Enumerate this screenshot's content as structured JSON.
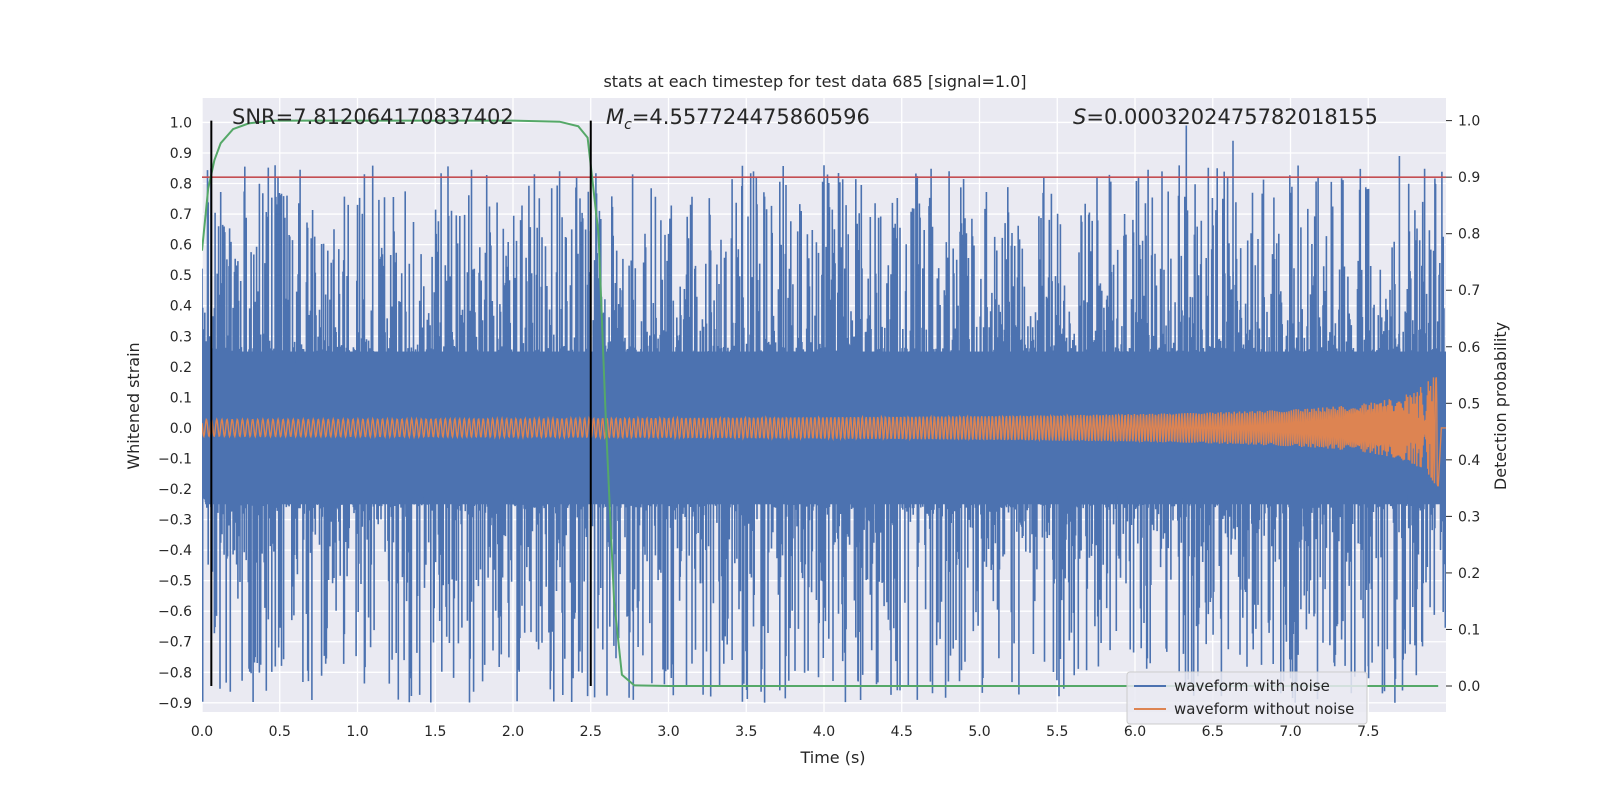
{
  "chart_data": {
    "type": "line",
    "title": "stats at each timestep for test data 685 [signal=1.0]",
    "xlabel": "Time (s)",
    "ylabel": "Whitened strain",
    "ylabel_right": "Detection probability",
    "xlim": [
      0,
      8
    ],
    "ylim": [
      -0.93,
      1.08
    ],
    "ylim_right": [
      -0.046,
      1.04
    ],
    "x_ticks": [
      "0.0",
      "0.5",
      "1.0",
      "1.5",
      "2.0",
      "2.5",
      "3.0",
      "3.5",
      "4.0",
      "4.5",
      "5.0",
      "5.5",
      "6.0",
      "6.5",
      "7.0",
      "7.5"
    ],
    "y_ticks": [
      "1.0",
      "0.9",
      "0.8",
      "0.7",
      "0.6",
      "0.5",
      "0.4",
      "0.3",
      "0.2",
      "0.1",
      "0.0",
      "−0.1",
      "−0.2",
      "−0.3",
      "−0.4",
      "−0.5",
      "−0.6",
      "−0.7",
      "−0.8",
      "−0.9"
    ],
    "y_ticks_right": [
      "1.0",
      "0.9",
      "0.8",
      "0.7",
      "0.6",
      "0.5",
      "0.4",
      "0.3",
      "0.2",
      "0.1",
      "0.0"
    ],
    "annotations": {
      "snr_label": "SNR=7.812064170837402",
      "mc_symbol": "M",
      "mc_sub": "c",
      "mc_value": "=4.557724475860596",
      "s_symbol": "S",
      "s_value": "=0.0003202475782018155"
    },
    "vertical_lines_x": [
      0.06,
      2.5
    ],
    "threshold_right_y": 0.9,
    "legend": {
      "position": "lower-right",
      "entries": [
        "waveform with noise",
        "waveform without noise"
      ]
    },
    "series": [
      {
        "name": "waveform with noise",
        "color": "#4c72b0",
        "envelope": {
          "core": 0.25,
          "burst_mean_max": 0.42,
          "spikes": [
            [
              0.47,
              0.86
            ],
            [
              0.94,
              0.73
            ],
            [
              1.0,
              0.73
            ],
            [
              2.3,
              0.84
            ],
            [
              4.0,
              0.86
            ],
            [
              4.12,
              0.81
            ],
            [
              6.33,
              0.99
            ],
            [
              6.63,
              0.94
            ],
            [
              7.0,
              0.77
            ],
            [
              7.7,
              0.89
            ],
            [
              7.85,
              0.74
            ]
          ],
          "neg_spikes": [
            [
              1.3,
              -0.76
            ],
            [
              4.22,
              -0.83
            ],
            [
              7.03,
              -0.9
            ],
            [
              7.0,
              -0.82
            ],
            [
              3.6,
              -0.79
            ],
            [
              7.5,
              -0.78
            ]
          ]
        }
      },
      {
        "name": "waveform without noise",
        "color": "#dd8452",
        "amplitude_start": 0.012,
        "amplitude_end": 0.21,
        "freq_start": 30,
        "t_merge": 7.95
      },
      {
        "name": "detection probability",
        "color": "#55a868",
        "x": [
          0.0,
          0.04,
          0.08,
          0.12,
          0.2,
          0.3,
          0.45,
          0.8,
          1.5,
          2.0,
          2.3,
          2.42,
          2.48,
          2.55,
          2.6,
          2.65,
          2.7,
          2.78,
          3.0,
          5.0,
          7.95
        ],
        "y": [
          0.77,
          0.88,
          0.93,
          0.96,
          0.985,
          0.995,
          1.0,
          1.0,
          1.0,
          1.0,
          0.998,
          0.99,
          0.97,
          0.8,
          0.45,
          0.15,
          0.02,
          0.001,
          0.0,
          0.0,
          0.0
        ]
      }
    ],
    "colors": {
      "background": "#eaeaf2",
      "grid": "#ffffff",
      "threshold": "#c44e52",
      "vline": "#000000"
    }
  }
}
